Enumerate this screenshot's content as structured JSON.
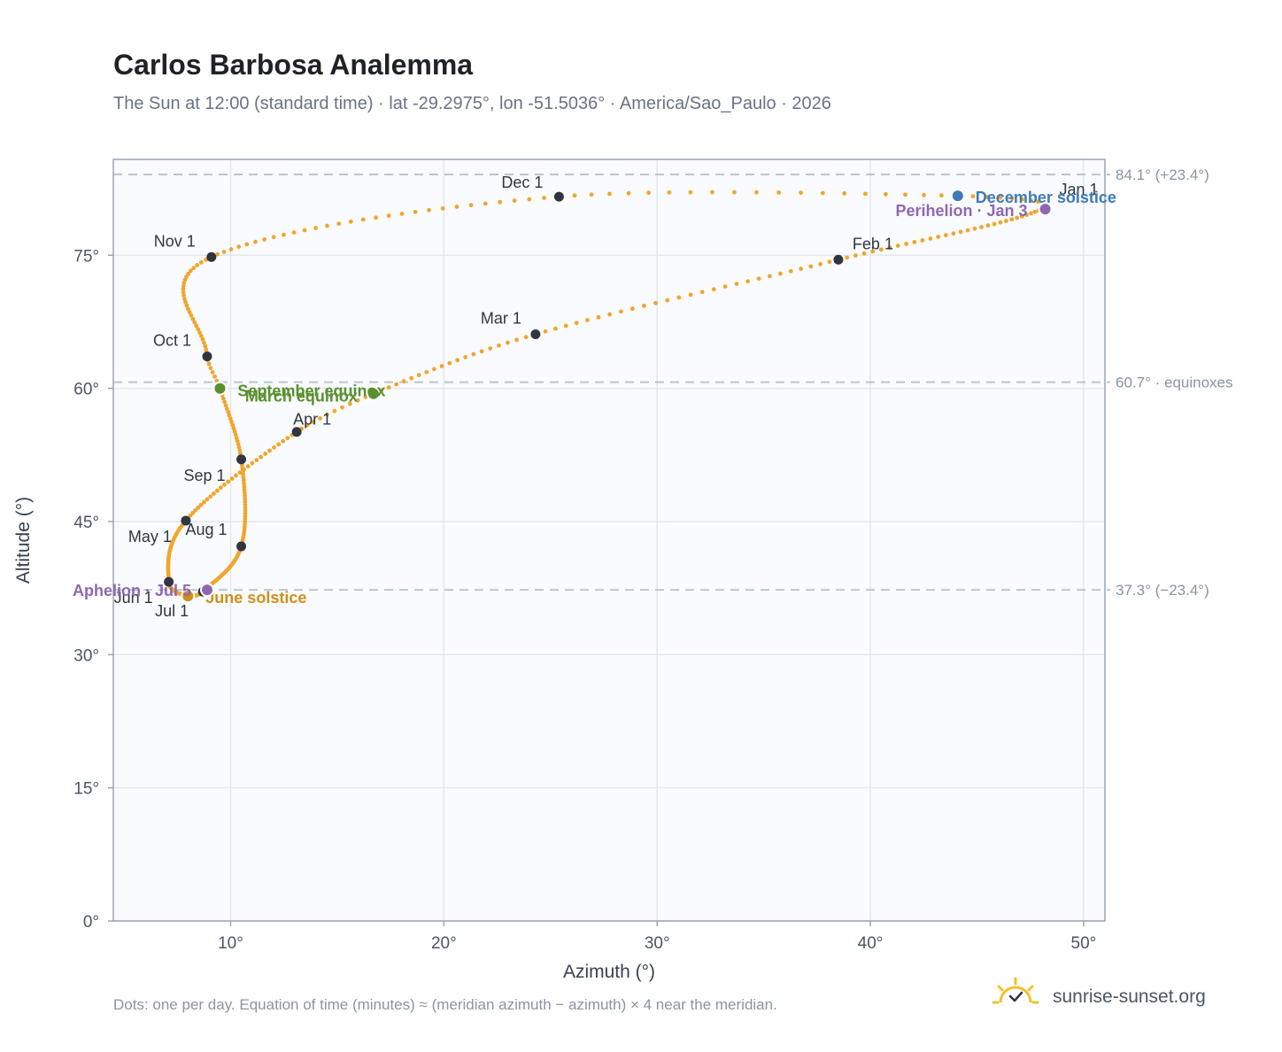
{
  "header": {
    "title": "Carlos Barbosa Analemma",
    "subtitle": "The Sun at 12:00 (standard time) · lat -29.2975°, lon -51.5036° · America/Sao_Paulo · 2026"
  },
  "footer": {
    "note": "Dots: one per day. Equation of time (minutes) ≈ (meridian azimuth − azimuth) × 4 near the meridian.",
    "brand": "sunrise-sunset.org"
  },
  "colors": {
    "path": "#f2a52c",
    "month_marker": "#2f3640",
    "equinox": "#5a8f2f",
    "december_solstice": "#3f7ab8",
    "june_solstice": "#d08f1a",
    "apsis": "#8e67b0",
    "plot_bg": "#f9fbfe",
    "grid": "#e3e8ee",
    "frame": "#9aa5b4",
    "reference_line": "#b8c1cc",
    "brand_icon": "#f2c02e"
  },
  "chart_data": {
    "type": "scatter",
    "xlabel": "Azimuth (°)",
    "ylabel": "Altitude (°)",
    "xlim": [
      4.5,
      51
    ],
    "ylim": [
      0,
      85.8
    ],
    "x_ticks": [
      10,
      20,
      30,
      40,
      50
    ],
    "x_tick_labels": [
      "10°",
      "20°",
      "30°",
      "40°",
      "50°"
    ],
    "y_ticks": [
      0,
      15,
      30,
      45,
      60,
      75
    ],
    "y_tick_labels": [
      "0°",
      "15°",
      "30°",
      "45°",
      "60°",
      "75°"
    ],
    "grid": true,
    "reference_lines": [
      {
        "y": 84.1,
        "label": "84.1° (+23.4°)"
      },
      {
        "y": 60.7,
        "label": "60.7° · equinoxes"
      },
      {
        "y": 37.3,
        "label": "37.3° (−23.4°)"
      }
    ],
    "month_markers": [
      {
        "label": "Jan 1",
        "x": 48.2,
        "y": 80.4
      },
      {
        "label": "Feb 1",
        "x": 38.5,
        "y": 74.5
      },
      {
        "label": "Mar 1",
        "x": 24.3,
        "y": 66.1
      },
      {
        "label": "Apr 1",
        "x": 13.1,
        "y": 55.1
      },
      {
        "label": "May 1",
        "x": 7.9,
        "y": 45.1
      },
      {
        "label": "Jun 1",
        "x": 7.1,
        "y": 38.2
      },
      {
        "label": "Jul 1",
        "x": 8.7,
        "y": 37.1
      },
      {
        "label": "Aug 1",
        "x": 10.5,
        "y": 42.2
      },
      {
        "label": "Sep 1",
        "x": 10.5,
        "y": 52.0
      },
      {
        "label": "Oct 1",
        "x": 8.9,
        "y": 63.6
      },
      {
        "label": "Nov 1",
        "x": 9.1,
        "y": 74.8
      },
      {
        "label": "Dec 1",
        "x": 25.4,
        "y": 81.6
      }
    ],
    "events": [
      {
        "label": "December solstice",
        "x": 44.1,
        "y": 81.7,
        "kind": "december_solstice"
      },
      {
        "label": "Perihelion · Jan 3",
        "x": 48.2,
        "y": 80.2,
        "kind": "apsis"
      },
      {
        "label": "March equinox",
        "x": 16.7,
        "y": 59.4,
        "kind": "equinox"
      },
      {
        "label": "September equinox",
        "x": 9.5,
        "y": 60.0,
        "kind": "equinox"
      },
      {
        "label": "June solstice",
        "x": 8.0,
        "y": 36.6,
        "kind": "june_solstice"
      },
      {
        "label": "Aphelion · Jul 5",
        "x": 8.9,
        "y": 37.3,
        "kind": "apsis"
      }
    ],
    "daily_path_knots": [
      {
        "doy": 0,
        "x": 48.2,
        "y": 80.4
      },
      {
        "doy": 31,
        "x": 38.5,
        "y": 74.5
      },
      {
        "doy": 59,
        "x": 24.3,
        "y": 66.1
      },
      {
        "doy": 79,
        "x": 16.7,
        "y": 59.4
      },
      {
        "doy": 90,
        "x": 13.1,
        "y": 55.1
      },
      {
        "doy": 120,
        "x": 7.9,
        "y": 45.1
      },
      {
        "doy": 151,
        "x": 7.1,
        "y": 38.2
      },
      {
        "doy": 171,
        "x": 8.0,
        "y": 36.6
      },
      {
        "doy": 181,
        "x": 8.7,
        "y": 37.1
      },
      {
        "doy": 212,
        "x": 10.5,
        "y": 42.2
      },
      {
        "doy": 243,
        "x": 10.5,
        "y": 52.0
      },
      {
        "doy": 265,
        "x": 9.5,
        "y": 60.0
      },
      {
        "doy": 273,
        "x": 8.9,
        "y": 63.6
      },
      {
        "doy": 304,
        "x": 9.1,
        "y": 74.8
      },
      {
        "doy": 334,
        "x": 25.4,
        "y": 81.6
      },
      {
        "doy": 354,
        "x": 44.1,
        "y": 81.7
      },
      {
        "doy": 365,
        "x": 48.2,
        "y": 80.4
      }
    ]
  }
}
